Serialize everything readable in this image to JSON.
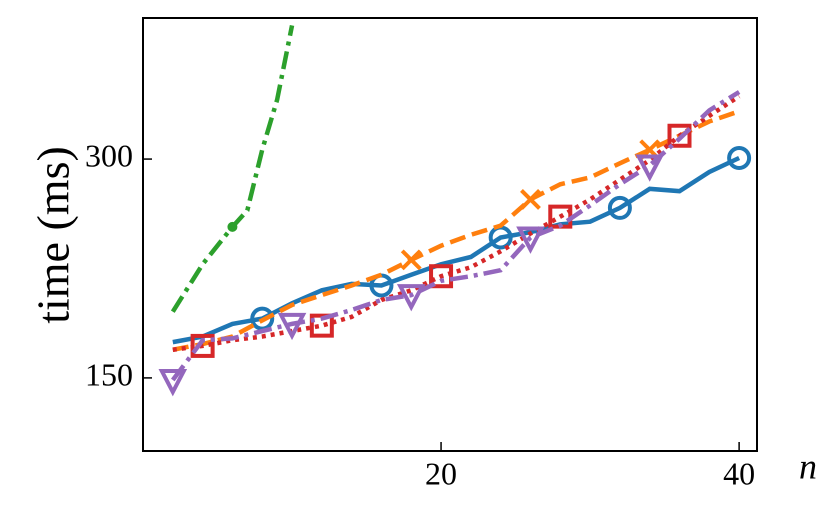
{
  "chart_data": {
    "type": "line",
    "y_label": "time (ms)",
    "x_label": "n",
    "xlim": [
      0,
      41.2
    ],
    "xticks": [
      20,
      40
    ],
    "ylim": [
      119,
      469
    ],
    "yticks": [
      150,
      300
    ],
    "log_y": true,
    "grid": false,
    "series": [
      {
        "color": "#1f77b4",
        "dash": "solid",
        "marker": "o",
        "marker_at": [
          8,
          16,
          24,
          32,
          40
        ],
        "x": [
          2,
          4,
          6,
          8,
          10,
          12,
          14,
          16,
          18,
          20,
          22,
          24,
          26,
          28,
          30,
          32,
          34,
          36,
          38,
          40
        ],
        "values": [
          168,
          171,
          178,
          181,
          190,
          198,
          202,
          201,
          208,
          215,
          220,
          234,
          238,
          244,
          246,
          257,
          273,
          271,
          288,
          301
        ]
      },
      {
        "color": "#ff7f0e",
        "dash": "dashed",
        "marker": "x",
        "marker_at": [
          18,
          26,
          34
        ],
        "x": [
          2,
          4,
          6,
          8,
          10,
          12,
          14,
          16,
          18,
          20,
          22,
          24,
          26,
          28,
          30,
          32,
          34,
          36,
          38,
          40
        ],
        "values": [
          164,
          167,
          171,
          180,
          189,
          195,
          201,
          208,
          218,
          228,
          236,
          243,
          264,
          277,
          283,
          296,
          309,
          323,
          338,
          349
        ]
      },
      {
        "color": "#2ca02c",
        "dash": "dashdot",
        "marker": "dot",
        "marker_at": [
          6
        ],
        "x": [
          2,
          4,
          6,
          7,
          8,
          9,
          10
        ],
        "values": [
          185,
          215,
          242,
          255,
          309,
          362,
          458
        ]
      },
      {
        "color": "#d62728",
        "dash": "dotted",
        "marker": "s",
        "marker_at": [
          4,
          12,
          20,
          28,
          36
        ],
        "x": [
          2,
          4,
          6,
          8,
          10,
          12,
          14,
          16,
          18,
          20,
          22,
          24,
          26,
          28,
          30,
          32,
          34,
          36,
          38,
          40
        ],
        "values": [
          164,
          166,
          169,
          171,
          174,
          177,
          182,
          192,
          198,
          207,
          213,
          224,
          237,
          250,
          264,
          281,
          299,
          323,
          344,
          366
        ]
      },
      {
        "color": "#9467bd",
        "dash": "dashdot",
        "marker": "v",
        "marker_at": [
          2,
          10,
          18,
          26,
          34
        ],
        "x": [
          2,
          4,
          6,
          8,
          10,
          12,
          14,
          16,
          18,
          20,
          22,
          24,
          26,
          28,
          30,
          32,
          34,
          36,
          38,
          40
        ],
        "values": [
          149,
          169,
          170,
          174,
          178,
          181,
          186,
          192,
          195,
          204,
          207,
          211,
          234,
          243,
          259,
          277,
          294,
          320,
          350,
          371
        ]
      }
    ]
  }
}
